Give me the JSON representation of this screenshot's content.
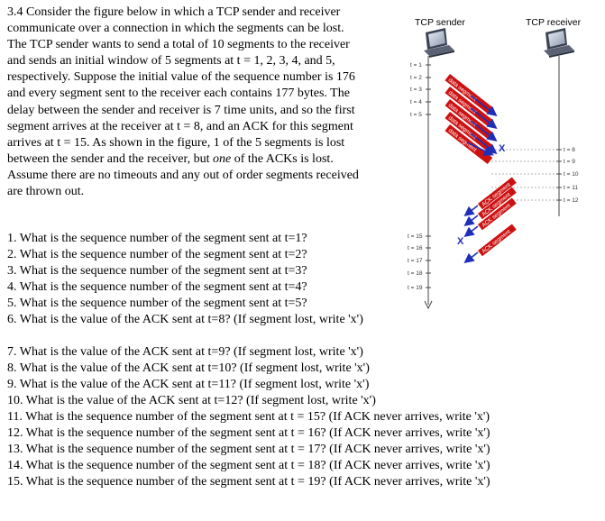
{
  "problem": {
    "intro": "3.4 Consider the figure below in which a TCP sender and receiver communicate over a connection in which the segments can be lost. The TCP sender wants to send a total of 10 segments to the receiver and sends an initial window of 5 segments at t = 1, 2, 3, 4, and 5, respectively. Suppose the initial value of the sequence number is 176 and every segment sent to the receiver each contains 177 bytes. The delay between the sender and receiver is 7 time units, and so the first segment arrives at the receiver at t = 8, and an ACK for this segment arrives at t = 15. As shown in the figure, 1 of the 5 segments is lost between the sender and the receiver,",
    "intro_line2_prefix": "but ",
    "intro_line2_italic": "one",
    "intro_line2_suffix": " of the ACKs is lost. Assume there are no timeouts and any out of order segments received are thrown out."
  },
  "questions": [
    "1. What is the sequence number of the segment sent at t=1?",
    "2. What is the sequence number of the segment sent at t=2?",
    "3. What is the sequence number of the segment sent at t=3?",
    "4. What is the sequence number of the segment sent at t=4?",
    "5. What is the sequence number of the segment sent at t=5?",
    "6. What is the value of the ACK sent at t=8? (If segment lost, write 'x')",
    "7. What is the value of the ACK sent at t=9? (If segment lost, write 'x')",
    "8. What is the value of the ACK sent at t=10? (If segment lost, write 'x')",
    "9. What is the value of the ACK sent at t=11? (If segment lost, write 'x')",
    "10. What is the value of the ACK sent at t=12? (If segment lost, write 'x')",
    "11. What is the sequence number of the segment sent at t = 15? (If ACK never arrives, write 'x')",
    "12. What is the sequence number of the segment sent at t = 16? (If ACK never arrives, write 'x')",
    "13. What is the sequence number of the segment sent at t = 17? (If ACK never arrives, write 'x')",
    "14. What is the sequence number of the segment sent at t = 18? (If ACK never arrives, write 'x')",
    "15. What is the sequence number of the segment sent at t = 19? (If ACK never arrives, write 'x')"
  ],
  "figure": {
    "sender_label": "TCP sender",
    "receiver_label": "TCP receiver",
    "sender_times": [
      "t = 1",
      "t = 2",
      "t = 3",
      "t = 4",
      "t = 5"
    ],
    "sender_ack_times": [
      "t = 15",
      "t = 16",
      "t = 17",
      "t = 18",
      "t = 19"
    ],
    "receiver_times": [
      "t = 8",
      "t = 9",
      "t = 10",
      "t = 11",
      "t = 12"
    ],
    "segment_label": "data segment",
    "ack_label": "ACK segment",
    "lost_mark": "X",
    "segment_color": "#cc1111",
    "arrow_color": "#1f2fb8"
  }
}
